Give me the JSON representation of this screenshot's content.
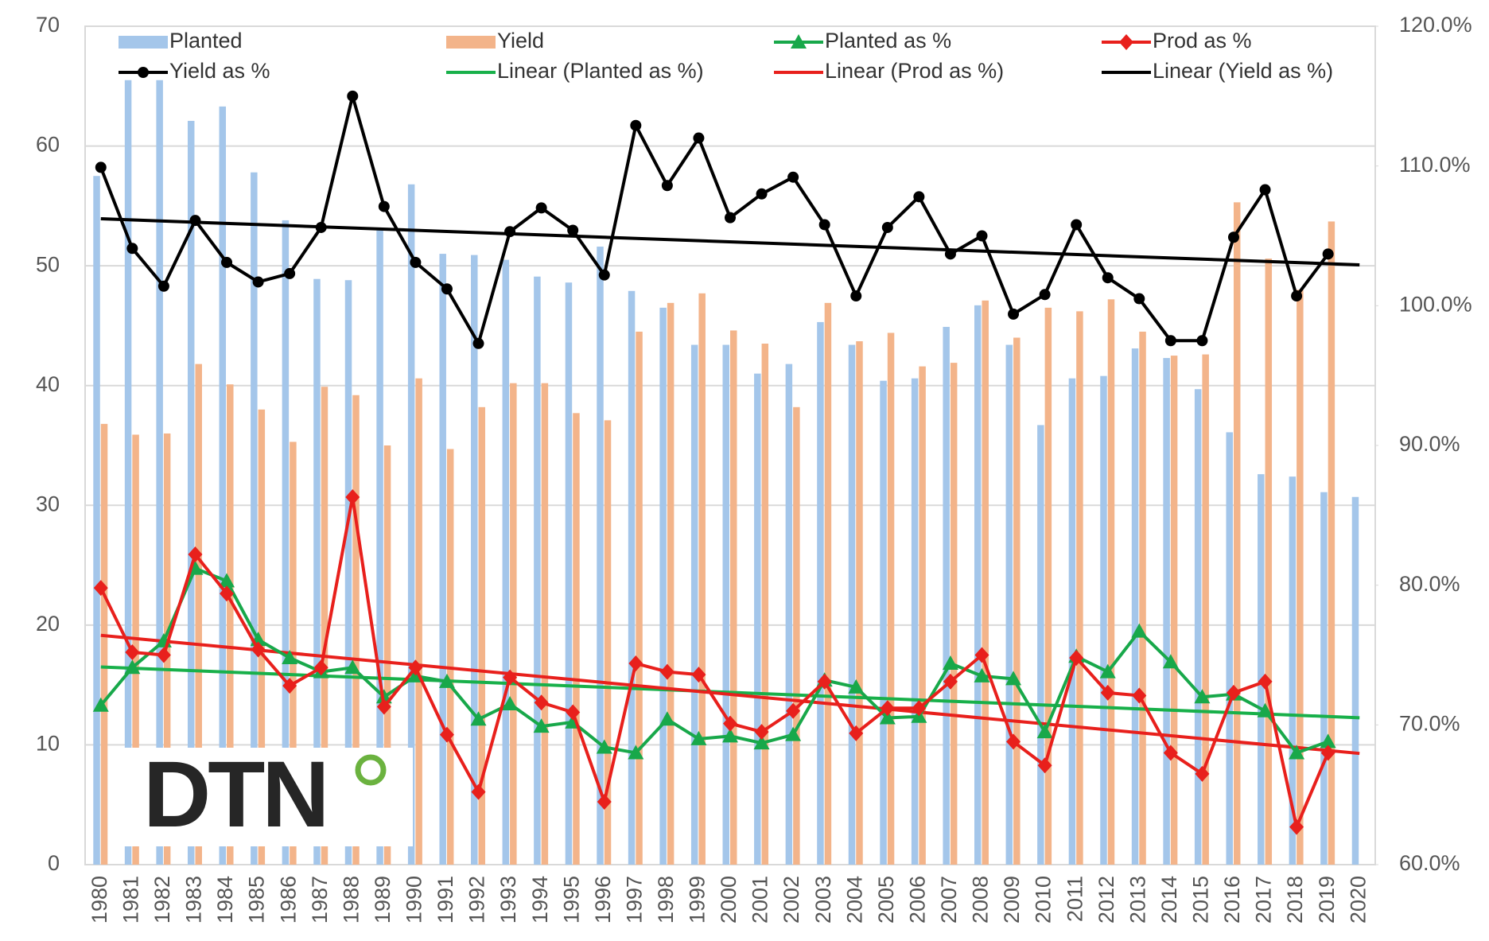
{
  "chart_data": {
    "type": "bar-line",
    "logo": "DTN",
    "categories": [
      "1980",
      "1981",
      "1982",
      "1983",
      "1984",
      "1985",
      "1986",
      "1987",
      "1988",
      "1989",
      "1990",
      "1991",
      "1992",
      "1993",
      "1994",
      "1995",
      "1996",
      "1997",
      "1998",
      "1999",
      "2000",
      "2001",
      "2002",
      "2003",
      "2004",
      "2005",
      "2006",
      "2007",
      "2008",
      "2009",
      "2010",
      "2011",
      "2012",
      "2013",
      "2014",
      "2015",
      "2016",
      "2017",
      "2018",
      "2019",
      "2020"
    ],
    "series": [
      {
        "name": "Planted",
        "kind": "bar",
        "color": "#a4c6ea",
        "values": [
          57.5,
          65.5,
          65.5,
          62.1,
          63.3,
          57.8,
          53.8,
          48.9,
          48.8,
          53.0,
          56.8,
          51.0,
          50.9,
          50.5,
          49.1,
          48.6,
          51.6,
          47.9,
          46.5,
          43.4,
          43.4,
          41.0,
          41.8,
          45.3,
          43.4,
          40.4,
          40.6,
          44.9,
          46.7,
          43.4,
          36.7,
          40.6,
          40.8,
          43.1,
          42.3,
          39.7,
          36.1,
          32.6,
          32.4,
          31.1,
          30.7
        ]
      },
      {
        "name": "Yield",
        "kind": "bar",
        "color": "#f3b48a",
        "values": [
          36.8,
          35.9,
          36.0,
          41.8,
          40.1,
          38.0,
          35.3,
          39.9,
          39.2,
          35.0,
          40.6,
          34.7,
          38.2,
          40.2,
          40.2,
          37.7,
          37.1,
          44.5,
          46.9,
          47.7,
          44.6,
          43.5,
          38.2,
          46.9,
          43.7,
          44.4,
          41.6,
          41.9,
          47.1,
          44.0,
          46.5,
          46.2,
          47.2,
          44.5,
          42.5,
          42.6,
          55.3,
          50.6,
          48.0,
          53.7,
          null
        ]
      },
      {
        "name": "Planted as %",
        "kind": "line",
        "axis": "y2",
        "marker": "triangle",
        "color": "#18a84a",
        "values": [
          71.4,
          74.1,
          76.0,
          81.2,
          80.3,
          76.1,
          74.8,
          73.8,
          74.1,
          72.0,
          73.5,
          73.1,
          70.4,
          71.5,
          69.9,
          70.2,
          68.4,
          68.0,
          70.4,
          69.0,
          69.2,
          68.7,
          69.3,
          73.2,
          72.7,
          70.5,
          70.6,
          74.4,
          73.5,
          73.3,
          69.5,
          74.9,
          73.8,
          76.7,
          74.5,
          72.0,
          72.2,
          71.0,
          68.0,
          68.8,
          null
        ],
        "trendline": {
          "name": "Linear (Planted as %)",
          "color": "#18b04a"
        }
      },
      {
        "name": "Prod as %",
        "kind": "line",
        "axis": "y2",
        "marker": "diamond",
        "color": "#e8201c",
        "values": [
          79.8,
          75.2,
          75.0,
          82.2,
          79.4,
          75.4,
          72.8,
          74.1,
          86.3,
          71.3,
          74.1,
          69.3,
          65.2,
          73.4,
          71.6,
          70.9,
          64.5,
          74.4,
          73.8,
          73.6,
          70.1,
          69.5,
          71.0,
          73.1,
          69.4,
          71.2,
          71.2,
          73.1,
          75.0,
          68.8,
          67.1,
          74.8,
          72.3,
          72.1,
          68.0,
          66.5,
          72.3,
          73.1,
          62.7,
          68.0,
          null
        ],
        "trendline": {
          "name": "Linear (Prod as %)",
          "color": "#e8201c"
        }
      },
      {
        "name": "Yield as %",
        "kind": "line",
        "axis": "y2",
        "marker": "circle",
        "color": "#000000",
        "values": [
          109.9,
          104.1,
          101.4,
          106.1,
          103.1,
          101.7,
          102.3,
          105.6,
          115.0,
          107.1,
          103.1,
          101.2,
          97.3,
          105.3,
          107.0,
          105.4,
          102.2,
          112.9,
          108.6,
          112.0,
          106.3,
          108.0,
          109.2,
          105.8,
          100.7,
          105.6,
          107.8,
          103.7,
          105.0,
          99.4,
          100.8,
          105.8,
          102.0,
          100.5,
          97.5,
          97.5,
          104.9,
          108.3,
          100.7,
          103.7,
          null
        ],
        "trendline": {
          "name": "Linear (Yield as %)",
          "color": "#000000"
        }
      }
    ],
    "ylim": [
      0,
      70
    ],
    "yticks": [
      0,
      10,
      20,
      30,
      40,
      50,
      60,
      70
    ],
    "y2lim": [
      60,
      120
    ],
    "y2ticks": [
      {
        "value": 60,
        "label": "60.0%"
      },
      {
        "value": 70,
        "label": "70.0%"
      },
      {
        "value": 80,
        "label": "80.0%"
      },
      {
        "value": 90,
        "label": "90.0%"
      },
      {
        "value": 100,
        "label": "100.0%"
      },
      {
        "value": 110,
        "label": "110.0%"
      },
      {
        "value": 120,
        "label": "120.0%"
      }
    ],
    "grid": true,
    "legend": "top"
  }
}
